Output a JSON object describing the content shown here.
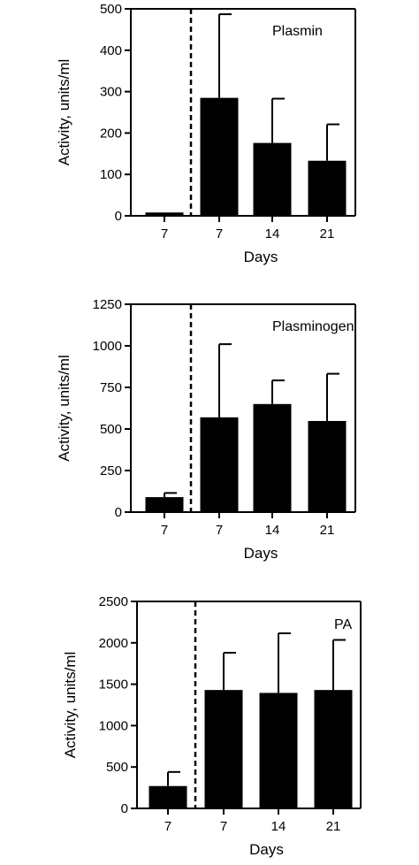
{
  "chart_data": [
    {
      "type": "bar",
      "panel_label": "Plasmin",
      "categories": [
        "7",
        "7",
        "14",
        "21"
      ],
      "values": [
        8,
        285,
        176,
        133
      ],
      "error_upper": [
        0,
        487,
        283,
        221
      ],
      "error_lower_visible": [
        0,
        285,
        176,
        137
      ],
      "ylabel": "Activity, units/ml",
      "xlabel": "Days",
      "ylim": [
        0,
        500
      ],
      "yticks": [
        0,
        100,
        200,
        300,
        400,
        500
      ],
      "divider": "dashed line between first and second bar",
      "bar_color": "#000000"
    },
    {
      "type": "bar",
      "panel_label": "Plasminogen",
      "categories": [
        "7",
        "7",
        "14",
        "21"
      ],
      "values": [
        90,
        570,
        650,
        548
      ],
      "error_upper": [
        115,
        1010,
        792,
        832
      ],
      "error_lower_visible": [
        90,
        570,
        650,
        548
      ],
      "ylabel": "Activity, units/ml",
      "xlabel": "Days",
      "ylim": [
        0,
        1250
      ],
      "yticks": [
        0,
        250,
        500,
        750,
        1000,
        1250
      ],
      "divider": "dashed line between first and second bar",
      "bar_color": "#000000"
    },
    {
      "type": "bar",
      "panel_label": "PA",
      "categories": [
        "7",
        "7",
        "14",
        "21"
      ],
      "values": [
        270,
        1430,
        1395,
        1430
      ],
      "error_upper": [
        440,
        1880,
        2115,
        2035
      ],
      "error_lower_visible": [
        270,
        1430,
        1395,
        1430
      ],
      "ylabel": "Activity, units/ml",
      "xlabel": "Days",
      "ylim": [
        0,
        2500
      ],
      "yticks": [
        0,
        500,
        1000,
        1500,
        2000,
        2500
      ],
      "divider": "dashed line between first and second bar",
      "bar_color": "#000000"
    }
  ]
}
